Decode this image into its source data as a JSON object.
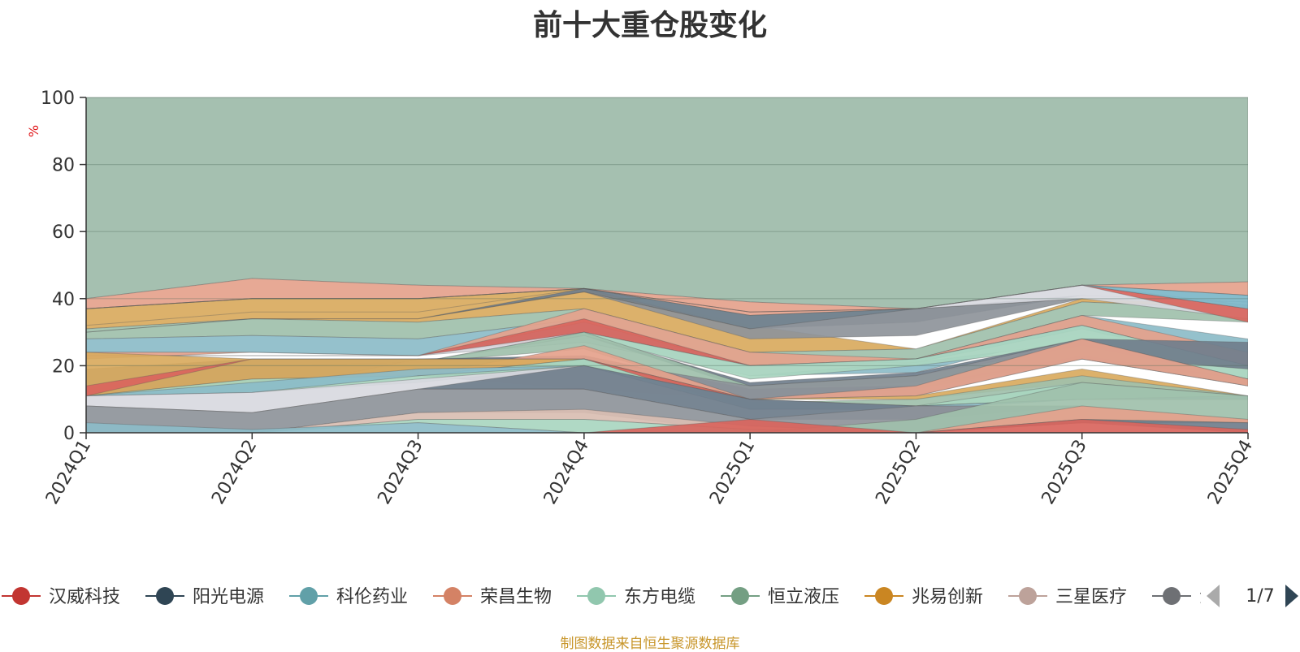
{
  "chart_data": {
    "type": "area",
    "title": "前十大重仓股变化",
    "ylabel": "%",
    "ylim": [
      0,
      100
    ],
    "yticks": [
      0,
      20,
      40,
      60,
      80,
      100
    ],
    "categories": [
      "2024Q1",
      "2024Q2",
      "2024Q3",
      "2024Q4",
      "2025Q1",
      "2025Q2",
      "2025Q3",
      "2025Q4"
    ],
    "bands": [
      {
        "color": "#9dbba9",
        "lower": [
          40,
          46,
          44,
          43,
          39,
          37,
          44,
          45
        ],
        "upper": [
          100,
          100,
          100,
          100,
          100,
          100,
          100,
          100
        ]
      },
      {
        "color": "#e5a28c",
        "lower": [
          37,
          40,
          40,
          43,
          35,
          37,
          44,
          41
        ],
        "upper": [
          40,
          46,
          44,
          43,
          39,
          37,
          44,
          45
        ]
      },
      {
        "color": "#d9aa5e",
        "lower": [
          31,
          34,
          33,
          37,
          24,
          25,
          39,
          37
        ],
        "upper": [
          37,
          40,
          40,
          43,
          32,
          25,
          40,
          38
        ]
      },
      {
        "color": "#9fc0ab",
        "lower": [
          28,
          29,
          28,
          34,
          20,
          22,
          35,
          33
        ],
        "upper": [
          31,
          34,
          33,
          37,
          24,
          25,
          39,
          37
        ]
      },
      {
        "color": "#8cbcc8",
        "lower": [
          24,
          24,
          23,
          30,
          17,
          18,
          30,
          24
        ],
        "upper": [
          28,
          29,
          28,
          34,
          20,
          22,
          35,
          28
        ]
      },
      {
        "color": "#a9d6c0",
        "lower": [
          32,
          36,
          36,
          43,
          31,
          37,
          44,
          41
        ],
        "upper": [
          32,
          36,
          36,
          43,
          35,
          37,
          44,
          41
        ]
      },
      {
        "color": "#707e8c",
        "lower": [
          30,
          34,
          34,
          42,
          31,
          33,
          41,
          39
        ],
        "upper": [
          30,
          34,
          34,
          43,
          35,
          37,
          41,
          39
        ]
      },
      {
        "color": "#8e949a",
        "lower": [
          30,
          34,
          34,
          42,
          28,
          29,
          40,
          39
        ],
        "upper": [
          30,
          34,
          34,
          42,
          31,
          37,
          40,
          39
        ]
      },
      {
        "color": "#d8d9e0",
        "lower": [
          37,
          40,
          40,
          43,
          36,
          37,
          40,
          34
        ],
        "upper": [
          37,
          40,
          40,
          43,
          36,
          37,
          44,
          38
        ]
      },
      {
        "color": "#d9655d",
        "lower": [
          37,
          40,
          40,
          43,
          36,
          37,
          44,
          33
        ],
        "upper": [
          37,
          40,
          40,
          43,
          36,
          37,
          44,
          37
        ]
      },
      {
        "color": "#7cb6c8",
        "lower": [
          37,
          40,
          40,
          43,
          36,
          37,
          44,
          37
        ],
        "upper": [
          37,
          40,
          40,
          43,
          36,
          37,
          44,
          41
        ]
      },
      {
        "color": "#e5a28c",
        "lower": [
          22,
          24,
          23,
          33,
          20,
          22,
          32,
          20
        ],
        "upper": [
          24,
          24,
          23,
          37,
          24,
          22,
          35,
          24
        ]
      },
      {
        "color": "#d9655d",
        "lower": [
          23,
          23,
          23,
          29,
          20,
          22,
          32,
          20
        ],
        "upper": [
          23,
          23,
          23,
          34,
          20,
          22,
          32,
          20
        ]
      },
      {
        "color": "#d8d9e0",
        "lower": [
          23,
          23,
          23,
          27,
          17,
          21,
          27,
          16
        ],
        "upper": [
          23,
          23,
          23,
          30,
          20,
          21,
          31,
          20
        ]
      },
      {
        "color": "#a9d6c0",
        "lower": [
          20,
          20,
          21,
          29,
          16,
          20,
          26,
          16
        ],
        "upper": [
          20,
          20,
          21,
          30,
          20,
          22,
          32,
          20
        ]
      },
      {
        "color": "#707e8c",
        "lower": [
          20,
          20,
          21,
          29,
          13,
          15,
          23,
          19
        ],
        "upper": [
          20,
          20,
          21,
          29,
          15,
          18,
          28,
          27
        ]
      },
      {
        "color": "#9fc0ab",
        "lower": [
          20,
          20,
          21,
          25,
          10,
          13,
          22,
          16
        ],
        "upper": [
          20,
          20,
          21,
          30,
          14,
          17,
          26,
          16
        ]
      },
      {
        "color": "#707e8c",
        "lower": [
          11,
          12,
          17,
          13,
          10,
          14,
          22,
          14
        ],
        "upper": [
          19,
          22,
          22,
          23,
          13,
          14,
          23,
          16
        ]
      },
      {
        "color": "#8e949a",
        "lower": [
          11,
          12,
          17,
          20,
          10,
          11,
          22,
          14
        ],
        "upper": [
          11,
          12,
          22,
          22,
          14,
          17,
          28,
          16
        ]
      },
      {
        "color": "#e5a28c",
        "lower": [
          11,
          16,
          17,
          22,
          10,
          11,
          22,
          14
        ],
        "upper": [
          11,
          16,
          17,
          26,
          10,
          14,
          28,
          16
        ]
      },
      {
        "color": "#d9aa5e",
        "lower": [
          11,
          15,
          17,
          21,
          10,
          10,
          15,
          11
        ],
        "upper": [
          24,
          22,
          22,
          22,
          10,
          11,
          19,
          11
        ]
      },
      {
        "color": "#9fc0ab",
        "lower": [
          11,
          16,
          17,
          20,
          8,
          8,
          10,
          10
        ],
        "upper": [
          11,
          16,
          17,
          22,
          9,
          10,
          17,
          11
        ]
      },
      {
        "color": "#a9d6c0",
        "lower": [
          11,
          12,
          15,
          20,
          7,
          8,
          10,
          10
        ],
        "upper": [
          11,
          16,
          17,
          22,
          9,
          8,
          15,
          11
        ]
      },
      {
        "color": "#d9655d",
        "lower": [
          11,
          22,
          22,
          22,
          7,
          8,
          10,
          10
        ],
        "upper": [
          14,
          22,
          22,
          22,
          10,
          8,
          10,
          11
        ]
      },
      {
        "color": "#8cbcc8",
        "lower": [
          11,
          12,
          17,
          20,
          7,
          7,
          10,
          10
        ],
        "upper": [
          11,
          15,
          19,
          20,
          10,
          8,
          10,
          11
        ]
      },
      {
        "color": "#d8d9e0",
        "lower": [
          8,
          6,
          13,
          13,
          4,
          4,
          8,
          4
        ],
        "upper": [
          11,
          12,
          16,
          20,
          7,
          7,
          8,
          4
        ]
      },
      {
        "color": "#707e8c",
        "lower": [
          8,
          6,
          13,
          13,
          4,
          4,
          8,
          4
        ],
        "upper": [
          8,
          6,
          13,
          20,
          10,
          8,
          8,
          4
        ]
      },
      {
        "color": "#8e949a",
        "lower": [
          0,
          0,
          6,
          6,
          0,
          0,
          3,
          3
        ],
        "upper": [
          8,
          6,
          13,
          13,
          4,
          8,
          8,
          4
        ]
      },
      {
        "color": "#d9beb2",
        "lower": [
          0,
          0,
          4,
          4,
          1,
          0,
          3,
          3
        ],
        "upper": [
          0,
          0,
          6,
          7,
          2,
          0,
          4,
          4
        ]
      },
      {
        "color": "#a9d6c0",
        "lower": [
          0,
          0,
          3,
          0,
          0,
          0,
          3,
          3
        ],
        "upper": [
          0,
          0,
          4,
          4,
          1,
          0,
          4,
          4
        ]
      },
      {
        "color": "#9fc0ab",
        "lower": [
          0,
          0,
          0,
          0,
          0,
          0,
          3,
          3
        ],
        "upper": [
          0,
          0,
          0,
          0,
          0,
          4,
          15,
          11
        ]
      },
      {
        "color": "#8cbcc8",
        "lower": [
          0,
          0,
          0,
          0,
          0,
          0,
          0,
          0
        ],
        "upper": [
          3,
          1,
          3,
          0,
          0,
          0,
          0,
          0
        ]
      },
      {
        "color": "#e5a28c",
        "lower": [
          0,
          0,
          0,
          0,
          0,
          0,
          4,
          3
        ],
        "upper": [
          0,
          0,
          0,
          0,
          0,
          0,
          8,
          4
        ]
      },
      {
        "color": "#707e8c",
        "lower": [
          0,
          0,
          0,
          0,
          0,
          0,
          3,
          0
        ],
        "upper": [
          0,
          0,
          0,
          0,
          0,
          0,
          4,
          3
        ]
      },
      {
        "color": "#d9655d",
        "lower": [
          0,
          0,
          0,
          0,
          0,
          0,
          0,
          0
        ],
        "upper": [
          0,
          0,
          0,
          0,
          4,
          0,
          4,
          1
        ]
      }
    ],
    "legend": [
      {
        "name": "汉威科技",
        "color": "#c23531"
      },
      {
        "name": "阳光电源",
        "color": "#2f4554"
      },
      {
        "name": "科伦药业",
        "color": "#61a0a8"
      },
      {
        "name": "荣昌生物",
        "color": "#d48265"
      },
      {
        "name": "东方电缆",
        "color": "#91c7ae"
      },
      {
        "name": "恒立液压",
        "color": "#749f83"
      },
      {
        "name": "兆易创新",
        "color": "#ca8622"
      },
      {
        "name": "三星医疗",
        "color": "#bda29a"
      },
      {
        "name": "汇",
        "color": "#6e7074"
      }
    ],
    "legend_page": "1/7",
    "footer": "制图数据来自恒生聚源数据库"
  }
}
